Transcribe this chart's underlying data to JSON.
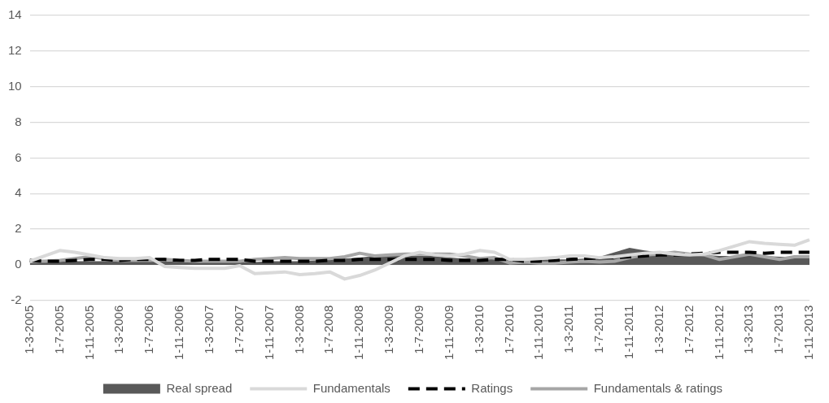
{
  "chart_data": {
    "type": "line",
    "categories": [
      "1-3-2005",
      null,
      "1-7-2005",
      null,
      "1-11-2005",
      null,
      "1-3-2006",
      null,
      "1-7-2006",
      null,
      "1-11-2006",
      null,
      "1-3-2007",
      null,
      "1-7-2007",
      null,
      "1-11-2007",
      null,
      "1-3-2008",
      null,
      "1-7-2008",
      null,
      "1-11-2008",
      null,
      "1-3-2009",
      null,
      "1-7-2009",
      null,
      "1-11-2009",
      null,
      "1-3-2010",
      null,
      "1-7-2010",
      null,
      "1-11-2010",
      null,
      "1-3-2011",
      null,
      "1-7-2011",
      null,
      "1-11-2011",
      null,
      "1-3-2012",
      null,
      "1-7-2012",
      null,
      "1-11-2012",
      null,
      "1-3-2013",
      null,
      "1-7-2013",
      null,
      "1-11-2013"
    ],
    "series": [
      {
        "name": "Real spread",
        "type": "area",
        "color": "#595959",
        "values": [
          0.1,
          0.15,
          0.2,
          0.2,
          0.2,
          0.2,
          0.2,
          0.2,
          0.2,
          0.2,
          0.15,
          0.15,
          0.15,
          0.15,
          0.15,
          0.15,
          0.2,
          0.2,
          0.2,
          0.25,
          0.3,
          0.35,
          0.4,
          0.5,
          0.55,
          0.5,
          0.5,
          0.5,
          0.4,
          0.35,
          0.35,
          0.3,
          0.3,
          0.3,
          0.3,
          0.3,
          0.3,
          0.35,
          0.45,
          0.7,
          0.95,
          0.8,
          0.7,
          0.65,
          0.55,
          0.55,
          0.5,
          0.5,
          0.5,
          0.5,
          0.45,
          0.45,
          0.4
        ]
      },
      {
        "name": "Fundamentals",
        "type": "line",
        "color": "#d9d9d9",
        "line_style": "solid",
        "values": [
          0.2,
          0.5,
          0.8,
          0.7,
          0.55,
          0.4,
          0.35,
          0.35,
          0.4,
          -0.1,
          -0.15,
          -0.2,
          -0.2,
          -0.2,
          -0.05,
          -0.5,
          -0.45,
          -0.4,
          -0.55,
          -0.5,
          -0.4,
          -0.8,
          -0.6,
          -0.3,
          0.1,
          0.5,
          0.7,
          0.55,
          0.5,
          0.6,
          0.8,
          0.7,
          0.3,
          0.3,
          0.35,
          0.4,
          0.5,
          0.5,
          0.4,
          0.45,
          0.55,
          0.65,
          0.7,
          0.6,
          0.55,
          0.6,
          0.8,
          1.05,
          1.3,
          1.2,
          1.15,
          1.1,
          1.4
        ]
      },
      {
        "name": "Ratings",
        "type": "line",
        "color": "#000000",
        "line_style": "dashed",
        "values": [
          0.25,
          0.2,
          0.2,
          0.25,
          0.3,
          0.3,
          0.25,
          0.3,
          0.3,
          0.3,
          0.25,
          0.25,
          0.3,
          0.3,
          0.3,
          0.2,
          0.2,
          0.2,
          0.2,
          0.2,
          0.25,
          0.25,
          0.3,
          0.3,
          0.3,
          0.3,
          0.3,
          0.3,
          0.25,
          0.25,
          0.25,
          0.3,
          0.3,
          0.2,
          0.2,
          0.25,
          0.3,
          0.35,
          0.4,
          0.4,
          0.45,
          0.5,
          0.55,
          0.55,
          0.6,
          0.65,
          0.7,
          0.7,
          0.7,
          0.65,
          0.7,
          0.7,
          0.7
        ]
      },
      {
        "name": "Fundamentals & ratings",
        "type": "line",
        "color": "#a6a6a6",
        "line_style": "solid",
        "values": [
          0.2,
          0.2,
          0.25,
          0.35,
          0.45,
          0.35,
          0.25,
          0.25,
          0.25,
          0.3,
          0.25,
          0.2,
          0.2,
          0.2,
          0.2,
          0.3,
          0.35,
          0.4,
          0.35,
          0.35,
          0.35,
          0.45,
          0.65,
          0.5,
          0.55,
          0.6,
          0.6,
          0.6,
          0.6,
          0.5,
          0.35,
          0.4,
          0.1,
          0.15,
          0.1,
          0.1,
          0.15,
          0.2,
          0.15,
          0.2,
          0.4,
          0.55,
          0.6,
          0.7,
          0.6,
          0.55,
          0.3,
          0.45,
          0.6,
          0.45,
          0.3,
          0.45,
          0.45
        ]
      }
    ],
    "ylim": [
      -2,
      14
    ],
    "yticks": [
      -2,
      0,
      2,
      4,
      6,
      8,
      10,
      12,
      14
    ],
    "grid": "y",
    "legend": "bottom",
    "marker": "none"
  }
}
